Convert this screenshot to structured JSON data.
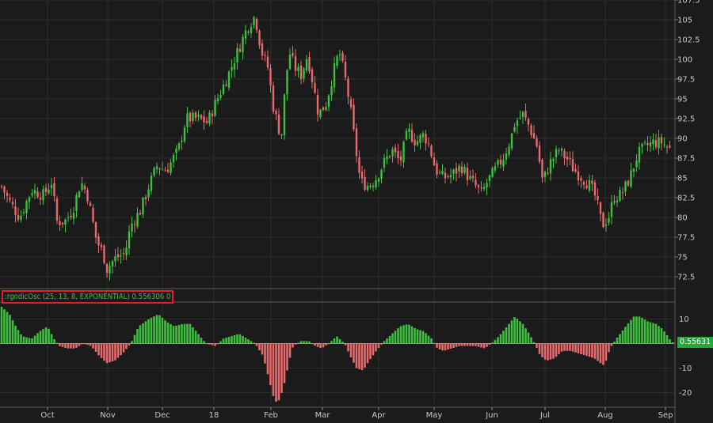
{
  "colors": {
    "background": "#1b1b1b",
    "grid": "#2c2c2c",
    "up": "#3fbf3f",
    "down": "#e86a6a",
    "label_border": "#e0202a",
    "readout_bg": "#23a83a"
  },
  "study": {
    "label": ":rgodicOsc (25, 13, 8, EXPONENTIAL) 0.556306 0",
    "readout": "0.55631"
  },
  "chart_data": [
    {
      "type": "candlestick",
      "name": "price",
      "ylim": [
        71.5,
        107.5
      ],
      "yticks": [
        "72.5",
        "75",
        "77.5",
        "80",
        "82.5",
        "85",
        "87.5",
        "90",
        "92.5",
        "95",
        "97.5",
        "100",
        "102.5",
        "105",
        "107.5"
      ],
      "x_labels": [
        "Oct",
        "Nov",
        "Dec",
        "18",
        "Feb",
        "Mar",
        "Apr",
        "May",
        "Jun",
        "Jul",
        "Aug",
        "Sep"
      ],
      "grid": true,
      "path": [
        [
          0,
          84.3
        ],
        [
          12,
          82
        ],
        [
          25,
          80
        ],
        [
          40,
          83.5
        ],
        [
          55,
          82.8
        ],
        [
          65,
          84.5
        ],
        [
          72,
          79.5
        ],
        [
          82,
          79.5
        ],
        [
          92,
          81
        ],
        [
          102,
          84.5
        ],
        [
          110,
          83
        ],
        [
          116,
          80
        ],
        [
          122,
          77
        ],
        [
          130,
          75.5
        ],
        [
          135,
          73.5
        ],
        [
          145,
          74.8
        ],
        [
          158,
          75.5
        ],
        [
          165,
          79
        ],
        [
          178,
          81
        ],
        [
          188,
          84
        ],
        [
          198,
          86.5
        ],
        [
          210,
          86
        ],
        [
          225,
          88.5
        ],
        [
          235,
          92.5
        ],
        [
          250,
          92.5
        ],
        [
          262,
          92
        ],
        [
          272,
          94.5
        ],
        [
          288,
          98
        ],
        [
          300,
          101
        ],
        [
          312,
          104
        ],
        [
          322,
          105.5
        ],
        [
          330,
          101
        ],
        [
          338,
          99
        ],
        [
          345,
          94
        ],
        [
          355,
          90
        ],
        [
          360,
          96.5
        ],
        [
          365,
          101
        ],
        [
          372,
          99
        ],
        [
          380,
          98
        ],
        [
          388,
          100.5
        ],
        [
          395,
          97
        ],
        [
          402,
          93
        ],
        [
          412,
          94.5
        ],
        [
          420,
          98
        ],
        [
          428,
          101
        ],
        [
          435,
          98
        ],
        [
          442,
          94
        ],
        [
          450,
          88
        ],
        [
          455,
          84.5
        ],
        [
          465,
          84
        ],
        [
          475,
          85
        ],
        [
          485,
          87
        ],
        [
          495,
          88.5
        ],
        [
          505,
          87
        ],
        [
          515,
          91
        ],
        [
          525,
          89.5
        ],
        [
          535,
          90.5
        ],
        [
          542,
          89
        ],
        [
          550,
          86
        ],
        [
          560,
          85
        ],
        [
          572,
          85.5
        ],
        [
          582,
          86.5
        ],
        [
          592,
          85
        ],
        [
          600,
          84
        ],
        [
          608,
          83
        ],
        [
          615,
          84.5
        ],
        [
          625,
          86
        ],
        [
          635,
          87.5
        ],
        [
          645,
          90
        ],
        [
          650,
          92
        ],
        [
          660,
          93
        ],
        [
          668,
          91.5
        ],
        [
          678,
          89
        ],
        [
          685,
          84.5
        ],
        [
          695,
          87
        ],
        [
          705,
          88.5
        ],
        [
          715,
          87.5
        ],
        [
          725,
          86
        ],
        [
          735,
          85
        ],
        [
          745,
          84
        ],
        [
          752,
          82.5
        ],
        [
          760,
          79
        ],
        [
          768,
          80
        ],
        [
          775,
          82.5
        ],
        [
          785,
          83
        ],
        [
          795,
          85
        ],
        [
          805,
          88
        ],
        [
          815,
          89
        ],
        [
          825,
          89.5
        ],
        [
          835,
          89.5
        ],
        [
          848,
          88.5
        ]
      ]
    },
    {
      "type": "histogram",
      "name": "ErgodicOsc",
      "ylim": [
        -25,
        15
      ],
      "yticks": [
        "10",
        "0",
        "-10",
        "-20"
      ],
      "path": [
        [
          2,
          15
        ],
        [
          12,
          12
        ],
        [
          20,
          7
        ],
        [
          28,
          3
        ],
        [
          40,
          2
        ],
        [
          50,
          5
        ],
        [
          60,
          7
        ],
        [
          68,
          2
        ],
        [
          75,
          -1
        ],
        [
          85,
          -2
        ],
        [
          95,
          -2
        ],
        [
          105,
          0
        ],
        [
          115,
          -1
        ],
        [
          125,
          -5
        ],
        [
          135,
          -8
        ],
        [
          145,
          -7
        ],
        [
          155,
          -4
        ],
        [
          165,
          0
        ],
        [
          175,
          7
        ],
        [
          188,
          10
        ],
        [
          200,
          12
        ],
        [
          210,
          9
        ],
        [
          220,
          7
        ],
        [
          230,
          8
        ],
        [
          240,
          8
        ],
        [
          250,
          4
        ],
        [
          260,
          0
        ],
        [
          272,
          -1
        ],
        [
          282,
          2
        ],
        [
          292,
          3
        ],
        [
          302,
          4
        ],
        [
          312,
          2
        ],
        [
          322,
          0
        ],
        [
          332,
          -5
        ],
        [
          340,
          -15
        ],
        [
          347,
          -24
        ],
        [
          353,
          -23
        ],
        [
          360,
          -15
        ],
        [
          365,
          -7
        ],
        [
          370,
          -1
        ],
        [
          380,
          1
        ],
        [
          390,
          1
        ],
        [
          398,
          -1
        ],
        [
          406,
          -2
        ],
        [
          415,
          0
        ],
        [
          425,
          3
        ],
        [
          435,
          0
        ],
        [
          442,
          -5
        ],
        [
          450,
          -10
        ],
        [
          458,
          -11
        ],
        [
          466,
          -7
        ],
        [
          475,
          -3
        ],
        [
          485,
          1
        ],
        [
          495,
          4
        ],
        [
          505,
          7
        ],
        [
          515,
          8
        ],
        [
          525,
          6
        ],
        [
          535,
          5
        ],
        [
          545,
          2
        ],
        [
          552,
          -2
        ],
        [
          560,
          -3
        ],
        [
          570,
          -2
        ],
        [
          580,
          -1
        ],
        [
          590,
          -1
        ],
        [
          600,
          -1
        ],
        [
          612,
          -2
        ],
        [
          620,
          0
        ],
        [
          630,
          3
        ],
        [
          640,
          7
        ],
        [
          650,
          11
        ],
        [
          660,
          8
        ],
        [
          668,
          4
        ],
        [
          675,
          0
        ],
        [
          682,
          -5
        ],
        [
          690,
          -7
        ],
        [
          700,
          -6
        ],
        [
          710,
          -3
        ],
        [
          720,
          -3
        ],
        [
          730,
          -4
        ],
        [
          740,
          -5
        ],
        [
          750,
          -6
        ],
        [
          758,
          -8
        ],
        [
          763,
          -9
        ],
        [
          770,
          -2
        ],
        [
          778,
          2
        ],
        [
          790,
          7
        ],
        [
          800,
          11
        ],
        [
          808,
          11
        ],
        [
          818,
          9
        ],
        [
          828,
          8
        ],
        [
          836,
          6
        ],
        [
          843,
          3
        ],
        [
          848,
          0.5
        ]
      ]
    }
  ]
}
